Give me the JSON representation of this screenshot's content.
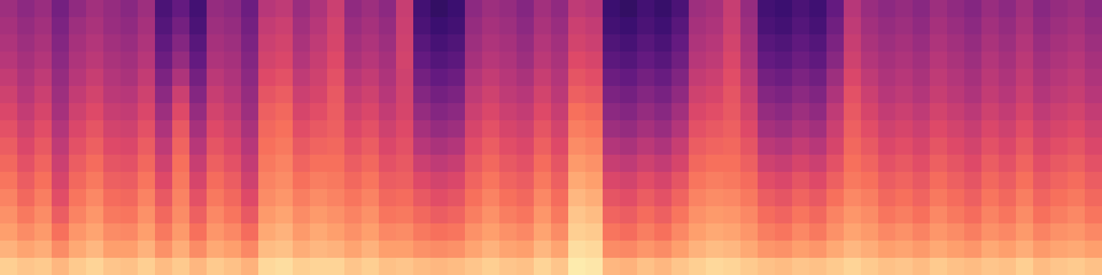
{
  "chart_data": {
    "type": "heatmap",
    "tick_labels": false,
    "zlim": [
      0,
      100
    ],
    "cells": [
      [
        90,
        88,
        89,
        85,
        89,
        91,
        88,
        87,
        90,
        86,
        89,
        85,
        89,
        87,
        84,
        92,
        93,
        90,
        91,
        91,
        88,
        90,
        87,
        88,
        86,
        85,
        86,
        88,
        90,
        88,
        87,
        91,
        88,
        96,
        95,
        85,
        84,
        87,
        85,
        88,
        90,
        92,
        91,
        89,
        87,
        86,
        88,
        87,
        89,
        91,
        89,
        87,
        88,
        86,
        89,
        87,
        86,
        88,
        87,
        90,
        86,
        88,
        89,
        87
      ],
      [
        84,
        81,
        83,
        76,
        82,
        85,
        80,
        80,
        84,
        77,
        83,
        76,
        82,
        80,
        75,
        86,
        87,
        83,
        85,
        84,
        81,
        84,
        80,
        80,
        77,
        76,
        77,
        81,
        84,
        81,
        80,
        85,
        81,
        93,
        92,
        76,
        75,
        78,
        76,
        80,
        84,
        86,
        85,
        82,
        78,
        77,
        80,
        78,
        82,
        85,
        83,
        80,
        81,
        79,
        82,
        80,
        78,
        82,
        80,
        83,
        79,
        81,
        82,
        80
      ],
      [
        80,
        76,
        79,
        70,
        78,
        81,
        76,
        75,
        80,
        72,
        79,
        70,
        78,
        75,
        69,
        82,
        84,
        79,
        82,
        80,
        77,
        80,
        75,
        76,
        72,
        70,
        71,
        77,
        80,
        77,
        75,
        81,
        76,
        90,
        89,
        71,
        69,
        73,
        70,
        75,
        80,
        82,
        81,
        78,
        73,
        71,
        75,
        72,
        77,
        81,
        79,
        75,
        77,
        74,
        78,
        76,
        73,
        77,
        75,
        79,
        74,
        77,
        78,
        75
      ],
      [
        77,
        72,
        76,
        65,
        74,
        78,
        72,
        71,
        77,
        68,
        76,
        66,
        75,
        71,
        64,
        79,
        81,
        76,
        79,
        77,
        74,
        77,
        71,
        72,
        68,
        65,
        67,
        73,
        77,
        73,
        71,
        78,
        72,
        88,
        86,
        67,
        65,
        69,
        66,
        71,
        77,
        79,
        78,
        75,
        69,
        67,
        71,
        68,
        74,
        78,
        76,
        71,
        73,
        70,
        75,
        72,
        69,
        74,
        71,
        76,
        70,
        73,
        75,
        71
      ],
      [
        74,
        68,
        73,
        61,
        71,
        75,
        69,
        68,
        74,
        64,
        74,
        62,
        72,
        68,
        60,
        76,
        78,
        73,
        76,
        74,
        71,
        74,
        68,
        69,
        64,
        61,
        63,
        70,
        74,
        70,
        68,
        75,
        69,
        85,
        83,
        63,
        61,
        65,
        62,
        67,
        74,
        76,
        75,
        72,
        65,
        63,
        67,
        64,
        70,
        75,
        73,
        68,
        70,
        67,
        72,
        69,
        66,
        71,
        68,
        73,
        67,
        70,
        72,
        68
      ],
      [
        71,
        65,
        70,
        58,
        68,
        72,
        66,
        65,
        71,
        60,
        72,
        58,
        69,
        65,
        56,
        74,
        76,
        70,
        73,
        72,
        68,
        71,
        65,
        66,
        60,
        57,
        59,
        67,
        71,
        67,
        65,
        72,
        66,
        82,
        80,
        59,
        57,
        61,
        58,
        63,
        71,
        73,
        72,
        69,
        61,
        59,
        63,
        60,
        66,
        72,
        70,
        65,
        67,
        64,
        69,
        66,
        63,
        68,
        65,
        70,
        64,
        67,
        69,
        65
      ],
      [
        68,
        62,
        67,
        55,
        65,
        69,
        63,
        62,
        68,
        56,
        70,
        54,
        66,
        62,
        53,
        72,
        74,
        67,
        70,
        70,
        65,
        68,
        62,
        64,
        55,
        52,
        54,
        64,
        68,
        64,
        62,
        69,
        63,
        79,
        77,
        54,
        52,
        56,
        53,
        58,
        68,
        70,
        70,
        66,
        56,
        54,
        58,
        55,
        62,
        70,
        67,
        62,
        64,
        61,
        66,
        63,
        60,
        65,
        62,
        67,
        61,
        64,
        66,
        62
      ],
      [
        65,
        59,
        64,
        52,
        62,
        66,
        60,
        59,
        65,
        52,
        67,
        50,
        63,
        59,
        50,
        70,
        72,
        64,
        67,
        68,
        62,
        65,
        59,
        62,
        50,
        47,
        49,
        61,
        65,
        61,
        59,
        66,
        60,
        76,
        74,
        49,
        47,
        51,
        48,
        54,
        65,
        67,
        68,
        63,
        51,
        49,
        53,
        50,
        58,
        68,
        64,
        59,
        61,
        58,
        63,
        60,
        57,
        62,
        59,
        64,
        58,
        61,
        63,
        59
      ],
      [
        62,
        56,
        61,
        49,
        59,
        63,
        57,
        56,
        62,
        48,
        64,
        46,
        60,
        56,
        47,
        68,
        70,
        61,
        64,
        66,
        59,
        62,
        56,
        60,
        46,
        42,
        44,
        58,
        62,
        58,
        56,
        63,
        57,
        73,
        71,
        44,
        42,
        46,
        43,
        49,
        62,
        64,
        66,
        60,
        46,
        44,
        48,
        45,
        55,
        66,
        61,
        56,
        58,
        55,
        60,
        57,
        54,
        59,
        56,
        61,
        55,
        58,
        60,
        56
      ],
      [
        59,
        53,
        58,
        46,
        56,
        60,
        54,
        53,
        59,
        44,
        60,
        42,
        57,
        53,
        44,
        66,
        68,
        58,
        61,
        65,
        56,
        59,
        53,
        58,
        42,
        38,
        40,
        55,
        59,
        55,
        53,
        60,
        54,
        70,
        68,
        40,
        38,
        42,
        39,
        45,
        59,
        61,
        64,
        57,
        42,
        40,
        44,
        41,
        52,
        64,
        58,
        53,
        55,
        52,
        57,
        54,
        51,
        56,
        53,
        58,
        52,
        55,
        57,
        53
      ],
      [
        56,
        50,
        55,
        44,
        53,
        57,
        51,
        50,
        56,
        40,
        55,
        38,
        54,
        50,
        42,
        63,
        65,
        55,
        58,
        64,
        53,
        56,
        50,
        57,
        38,
        34,
        36,
        52,
        56,
        52,
        50,
        57,
        51,
        66,
        64,
        36,
        34,
        38,
        35,
        41,
        56,
        58,
        63,
        54,
        38,
        36,
        40,
        37,
        48,
        62,
        55,
        50,
        52,
        49,
        54,
        51,
        48,
        53,
        50,
        55,
        49,
        52,
        54,
        50
      ],
      [
        53,
        48,
        52,
        42,
        50,
        54,
        49,
        47,
        53,
        36,
        48,
        34,
        51,
        48,
        40,
        60,
        62,
        52,
        56,
        62,
        50,
        53,
        48,
        56,
        34,
        30,
        32,
        49,
        53,
        50,
        47,
        54,
        49,
        63,
        61,
        32,
        30,
        34,
        31,
        37,
        53,
        55,
        61,
        51,
        34,
        32,
        36,
        33,
        44,
        59,
        52,
        48,
        50,
        47,
        52,
        49,
        46,
        51,
        48,
        53,
        47,
        50,
        52,
        48
      ],
      [
        50,
        46,
        49,
        40,
        48,
        51,
        47,
        45,
        50,
        32,
        42,
        30,
        48,
        46,
        38,
        57,
        59,
        49,
        54,
        60,
        47,
        50,
        46,
        57,
        30,
        26,
        28,
        46,
        50,
        48,
        44,
        51,
        47,
        60,
        58,
        28,
        26,
        30,
        27,
        33,
        50,
        52,
        59,
        48,
        30,
        28,
        32,
        29,
        39,
        56,
        49,
        46,
        48,
        45,
        50,
        47,
        44,
        49,
        46,
        51,
        45,
        48,
        50,
        46
      ],
      [
        48,
        44,
        47,
        38,
        46,
        49,
        45,
        43,
        48,
        29,
        38,
        27,
        46,
        44,
        36,
        55,
        57,
        47,
        52,
        58,
        45,
        48,
        44,
        56,
        27,
        23,
        25,
        44,
        48,
        46,
        42,
        49,
        45,
        57,
        55,
        25,
        23,
        27,
        24,
        30,
        48,
        50,
        57,
        46,
        27,
        25,
        29,
        26,
        36,
        54,
        47,
        44,
        46,
        43,
        48,
        45,
        42,
        47,
        44,
        49,
        43,
        46,
        48,
        44
      ],
      [
        46,
        42,
        45,
        36,
        44,
        47,
        43,
        41,
        46,
        26,
        34,
        24,
        44,
        42,
        34,
        53,
        55,
        45,
        50,
        57,
        43,
        46,
        42,
        55,
        24,
        20,
        22,
        42,
        46,
        44,
        40,
        47,
        43,
        55,
        53,
        22,
        20,
        24,
        21,
        27,
        46,
        48,
        55,
        44,
        24,
        22,
        26,
        23,
        33,
        52,
        45,
        42,
        44,
        41,
        46,
        43,
        40,
        45,
        42,
        47,
        41,
        44,
        46,
        42
      ],
      [
        44,
        40,
        43,
        34,
        41,
        45,
        42,
        39,
        44,
        24,
        30,
        22,
        42,
        40,
        32,
        50,
        52,
        43,
        48,
        55,
        41,
        44,
        40,
        54,
        22,
        18,
        20,
        40,
        44,
        42,
        38,
        45,
        41,
        52,
        50,
        20,
        18,
        22,
        19,
        24,
        44,
        46,
        54,
        42,
        22,
        20,
        24,
        21,
        30,
        50,
        43,
        40,
        42,
        39,
        44,
        41,
        38,
        43,
        40,
        45,
        39,
        42,
        44,
        40
      ]
    ]
  }
}
